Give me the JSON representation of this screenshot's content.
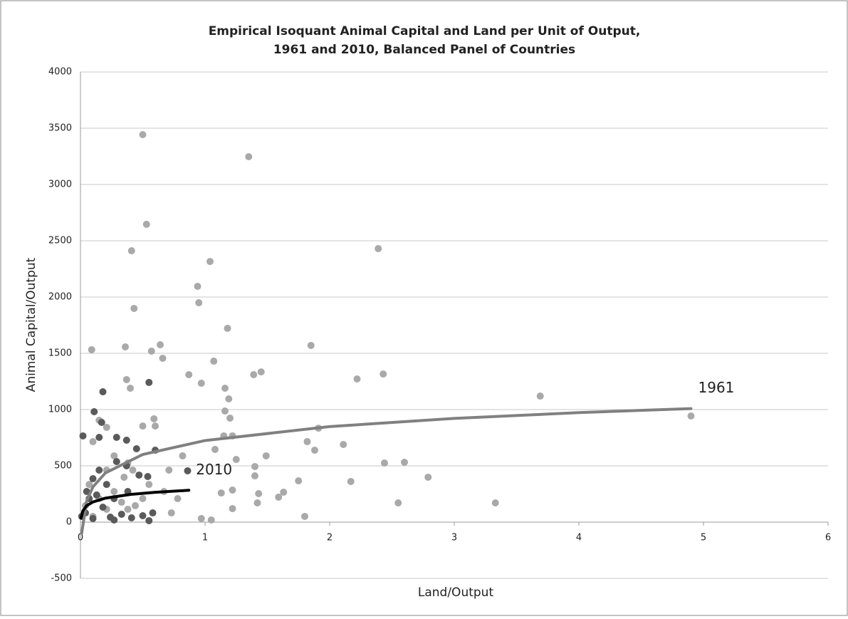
{
  "chart_data": {
    "type": "scatter",
    "title": [
      "Empirical Isoquant Animal Capital and Land per Unit of Output,",
      "1961 and 2010, Balanced Panel of Countries"
    ],
    "x_label": "Land/Output",
    "y_label": "Animal Capital/Output",
    "xlim": [
      0,
      6
    ],
    "xticks": [
      0,
      1,
      2,
      3,
      4,
      5,
      6
    ],
    "ylim": [
      -500,
      4000
    ],
    "yticks": [
      -500,
      0,
      500,
      1000,
      1500,
      2000,
      2500,
      3000,
      3500,
      4000
    ],
    "grid": true,
    "series": [
      {
        "color": "#a9a9a9",
        "x": [
          0.5,
          1.35,
          0.53,
          2.39,
          0.41,
          1.04,
          0.94,
          0.43,
          0.95,
          1.18,
          0.09,
          0.36,
          0.64,
          1.85,
          0.57,
          0.66,
          1.07,
          0.87,
          1.39,
          1.45,
          2.43,
          2.22,
          0.37,
          0.4,
          0.97,
          1.16,
          1.19,
          3.69,
          4.9,
          1.16,
          1.2,
          0.59,
          0.6,
          0.5,
          1.15,
          1.22,
          1.91,
          1.08,
          1.82,
          1.88,
          2.11,
          1.49,
          1.25,
          1.4,
          0.42,
          0.71,
          0.82,
          2.44,
          2.6,
          2.79,
          1.4,
          1.75,
          1.63,
          1.59,
          1.43,
          1.42,
          1.13,
          1.22,
          1.22,
          2.17,
          2.55,
          3.33,
          1.8,
          0.97,
          1.05,
          0.1,
          0.21,
          0.15,
          0.27,
          0.21,
          0.07,
          0.15,
          0.33,
          0.5,
          0.73,
          0.04,
          0.38,
          0.1,
          0.27,
          0.55,
          0.67,
          0.44,
          0.21,
          0.35,
          0.38,
          0.78
        ],
        "values": [
          3443,
          3247,
          2646,
          2430,
          2411,
          2316,
          2095,
          1899,
          1949,
          1722,
          1532,
          1557,
          1576,
          1570,
          1519,
          1456,
          1430,
          1310,
          1310,
          1335,
          1316,
          1272,
          1266,
          1190,
          1234,
          1190,
          1095,
          1120,
          943,
          987,
          924,
          918,
          854,
          854,
          766,
          766,
          835,
          646,
          715,
          639,
          690,
          589,
          557,
          494,
          462,
          462,
          589,
          525,
          532,
          399,
          411,
          367,
          266,
          222,
          253,
          171,
          259,
          285,
          120,
          361,
          171,
          171,
          51,
          32,
          19,
          715,
          842,
          905,
          589,
          462,
          335,
          209,
          177,
          209,
          82,
          146,
          114,
          51,
          272,
          335,
          272,
          146,
          114,
          399,
          525,
          209
        ]
      },
      {
        "color": "#5a5a5a",
        "x": [
          0.55,
          0.18,
          0.11,
          0.17,
          0.02,
          0.15,
          0.29,
          0.37,
          0.45,
          0.6,
          0.29,
          0.47,
          0.54,
          0.86,
          0.37,
          0.1,
          0.05,
          0.21,
          0.13,
          0.27,
          0.18,
          0.04,
          0.33,
          0.5,
          0.55,
          0.1,
          0.24,
          0.01,
          0.41,
          0.58,
          0.38,
          0.15,
          0.07,
          0.27
        ],
        "values": [
          1241,
          1158,
          981,
          886,
          766,
          753,
          753,
          728,
          652,
          639,
          538,
          418,
          405,
          456,
          500,
          386,
          272,
          335,
          241,
          209,
          133,
          82,
          70,
          57,
          13,
          32,
          44,
          51,
          38,
          82,
          272,
          462,
          209,
          19
        ]
      }
    ],
    "trendlines": [
      {
        "name": "1961",
        "color": "#808080",
        "x": [
          0.01,
          0.05,
          0.1,
          0.2,
          0.5,
          1,
          2,
          3,
          4,
          4.9
        ],
        "values": [
          -99,
          189,
          313,
          437,
          601,
          725,
          849,
          922,
          973,
          1009
        ]
      },
      {
        "name": "2010",
        "color": "#000000",
        "x": [
          0.005,
          0.02,
          0.05,
          0.1,
          0.2,
          0.4,
          0.6,
          0.87
        ],
        "values": [
          36,
          102,
          146,
          179,
          213,
          246,
          265,
          283
        ]
      }
    ]
  }
}
